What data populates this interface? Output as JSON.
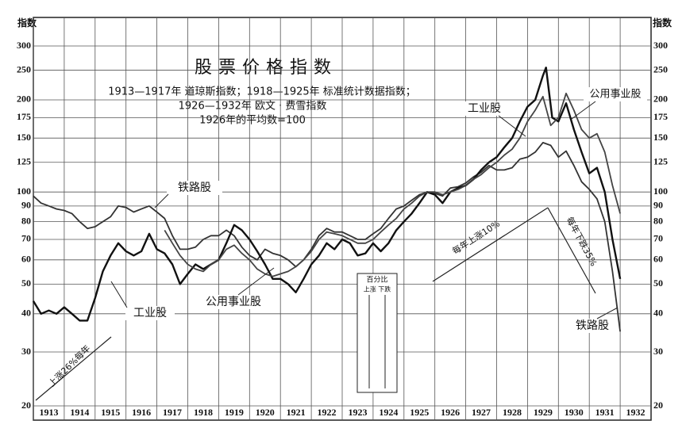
{
  "chart_data": {
    "type": "line",
    "title": "股票价格指数",
    "subtitle": [
      "1913—1917年 道琼斯指数；1918—1925年 标准统计数据指数；",
      "1926—1932年 欧文 · 费雪指数",
      "1926年的平均数=100"
    ],
    "y_label": "指数",
    "log_scale": true,
    "grid": true,
    "xlim": [
      1913,
      1933
    ],
    "xticks": [
      1913,
      1914,
      1915,
      1916,
      1917,
      1918,
      1919,
      1920,
      1921,
      1922,
      1923,
      1924,
      1925,
      1926,
      1927,
      1928,
      1929,
      1930,
      1931,
      1932
    ],
    "ylim": [
      20,
      300
    ],
    "yticks": [
      20,
      30,
      40,
      50,
      60,
      70,
      80,
      90,
      100,
      125,
      150,
      175,
      200,
      250,
      300
    ],
    "annotations": [
      "上涨26%每年",
      "每年上涨10%",
      "每年下跌35%",
      "百分比",
      "上涨 下跌"
    ],
    "series": [
      {
        "name": "铁路股",
        "color": "#333333",
        "x": [
          1913,
          1913.25,
          1913.5,
          1913.75,
          1914,
          1914.25,
          1914.5,
          1914.75,
          1915,
          1915.25,
          1915.5,
          1915.75,
          1916,
          1916.25,
          1916.5,
          1916.75,
          1917,
          1917.25,
          1917.5,
          1917.75,
          1918,
          1918.25,
          1918.5,
          1918.75,
          1919,
          1919.25,
          1919.5,
          1919.75,
          1920,
          1920.25,
          1920.5,
          1920.75,
          1921,
          1921.25,
          1921.5,
          1921.75,
          1922,
          1922.25,
          1922.5,
          1922.75,
          1923,
          1923.25,
          1923.5,
          1923.75,
          1924,
          1924.25,
          1924.5,
          1924.75,
          1925,
          1925.25,
          1925.5,
          1925.75,
          1926,
          1926.25,
          1926.5,
          1926.75,
          1927,
          1927.25,
          1927.5,
          1927.75,
          1928,
          1928.25,
          1928.5,
          1928.75,
          1929,
          1929.25,
          1929.5,
          1929.75,
          1930,
          1930.25,
          1930.5,
          1930.75,
          1931,
          1931.25,
          1931.5,
          1931.75,
          1931.9,
          1932
        ],
        "values": [
          97,
          92,
          90,
          88,
          87,
          85,
          80,
          76,
          77,
          80,
          83,
          90,
          89,
          86,
          88,
          90,
          86,
          82,
          72,
          65,
          65,
          66,
          70,
          72,
          72,
          75,
          72,
          66,
          62,
          60,
          65,
          63,
          62,
          60,
          57,
          60,
          65,
          72,
          76,
          74,
          74,
          72,
          70,
          70,
          73,
          76,
          82,
          88,
          90,
          94,
          98,
          100,
          99,
          97,
          103,
          104,
          107,
          112,
          116,
          122,
          118,
          118,
          120,
          128,
          130,
          135,
          145,
          142,
          130,
          136,
          122,
          108,
          102,
          95,
          80,
          55,
          42,
          35
        ]
      },
      {
        "name": "工业股",
        "color": "#111111",
        "x": [
          1913,
          1913.25,
          1913.5,
          1913.75,
          1914,
          1914.25,
          1914.5,
          1914.75,
          1915,
          1915.25,
          1915.5,
          1915.75,
          1916,
          1916.25,
          1916.5,
          1916.75,
          1917,
          1917.25,
          1917.5,
          1917.75,
          1918,
          1918.25,
          1918.5,
          1918.75,
          1919,
          1919.25,
          1919.5,
          1919.75,
          1920,
          1920.25,
          1920.5,
          1920.75,
          1921,
          1921.25,
          1921.5,
          1921.75,
          1922,
          1922.25,
          1922.5,
          1922.75,
          1923,
          1923.25,
          1923.5,
          1923.75,
          1924,
          1924.25,
          1924.5,
          1924.75,
          1925,
          1925.25,
          1925.5,
          1925.75,
          1926,
          1926.25,
          1926.5,
          1926.75,
          1927,
          1927.25,
          1927.5,
          1927.75,
          1928,
          1928.25,
          1928.5,
          1928.75,
          1929,
          1929.25,
          1929.5,
          1929.6,
          1929.8,
          1930,
          1930.25,
          1930.5,
          1930.75,
          1931,
          1931.25,
          1931.5,
          1931.75,
          1932
        ],
        "values": [
          44,
          40,
          41,
          40,
          42,
          40,
          38,
          38,
          45,
          55,
          62,
          68,
          64,
          62,
          64,
          73,
          65,
          63,
          58,
          50,
          54,
          58,
          56,
          58,
          60,
          68,
          78,
          75,
          70,
          64,
          58,
          52,
          52,
          50,
          47,
          52,
          58,
          62,
          68,
          65,
          70,
          68,
          62,
          63,
          68,
          64,
          68,
          75,
          80,
          85,
          92,
          100,
          98,
          92,
          100,
          103,
          105,
          110,
          118,
          125,
          130,
          140,
          150,
          170,
          190,
          200,
          240,
          255,
          175,
          170,
          195,
          160,
          135,
          115,
          120,
          100,
          70,
          52
        ]
      },
      {
        "name": "公用事业股",
        "color": "#444444",
        "x": [
          1917.25,
          1917.5,
          1917.75,
          1918,
          1918.25,
          1918.5,
          1918.75,
          1919,
          1919.25,
          1919.5,
          1919.75,
          1920,
          1920.25,
          1920.5,
          1920.75,
          1921,
          1921.25,
          1921.5,
          1921.75,
          1922,
          1922.25,
          1922.5,
          1922.75,
          1923,
          1923.25,
          1923.5,
          1923.75,
          1924,
          1924.25,
          1924.5,
          1924.75,
          1925,
          1925.25,
          1925.5,
          1925.75,
          1926,
          1926.25,
          1926.5,
          1926.75,
          1927,
          1927.25,
          1927.5,
          1927.75,
          1928,
          1928.25,
          1928.5,
          1928.75,
          1929,
          1929.25,
          1929.5,
          1929.75,
          1930,
          1930.25,
          1930.5,
          1930.75,
          1931,
          1931.25,
          1931.5,
          1931.75,
          1932
        ],
        "values": [
          75,
          68,
          62,
          58,
          56,
          55,
          58,
          60,
          65,
          67,
          63,
          60,
          56,
          54,
          53,
          54,
          55,
          57,
          60,
          64,
          70,
          74,
          73,
          72,
          70,
          68,
          68,
          70,
          74,
          78,
          82,
          88,
          92,
          97,
          100,
          100,
          98,
          100,
          102,
          105,
          110,
          114,
          120,
          125,
          132,
          138,
          150,
          170,
          185,
          205,
          165,
          175,
          210,
          185,
          160,
          150,
          155,
          135,
          105,
          85
        ]
      }
    ]
  }
}
